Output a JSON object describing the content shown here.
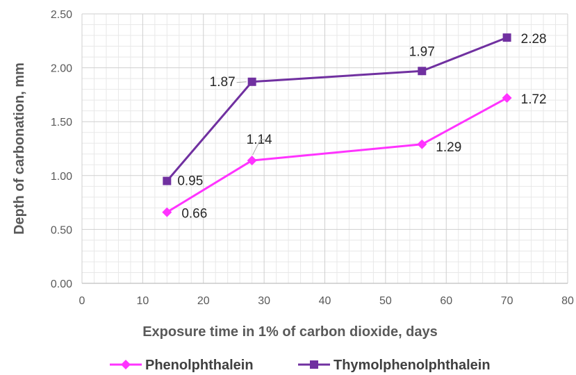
{
  "chart_data": {
    "type": "line",
    "title": "",
    "xlabel": "Exposure time in 1% of carbon dioxide, days",
    "ylabel": "Depth of carbonation, mm",
    "xlim": [
      0,
      80
    ],
    "ylim": [
      0,
      2.5
    ],
    "x_ticks": [
      "0",
      "10",
      "20",
      "30",
      "40",
      "50",
      "60",
      "70",
      "80"
    ],
    "y_ticks": [
      "0.00",
      "0.50",
      "1.00",
      "1.50",
      "2.00",
      "2.50"
    ],
    "grid": true,
    "minor_grid": true,
    "legend_position": "bottom",
    "series": [
      {
        "name": "Phenolphthalein",
        "color": "#ff33ff",
        "marker": "diamond",
        "x": [
          14,
          28,
          56,
          70
        ],
        "y": [
          0.66,
          1.14,
          1.29,
          1.72
        ],
        "labels": [
          "0.66",
          "1.14",
          "1.29",
          "1.72"
        ]
      },
      {
        "name": "Thymolphenolphthalein",
        "color": "#7030a0",
        "marker": "square",
        "x": [
          14,
          28,
          56,
          70
        ],
        "y": [
          0.95,
          1.87,
          1.97,
          2.28
        ],
        "labels": [
          "0.95",
          "1.87",
          "1.97",
          "2.28"
        ]
      }
    ]
  }
}
